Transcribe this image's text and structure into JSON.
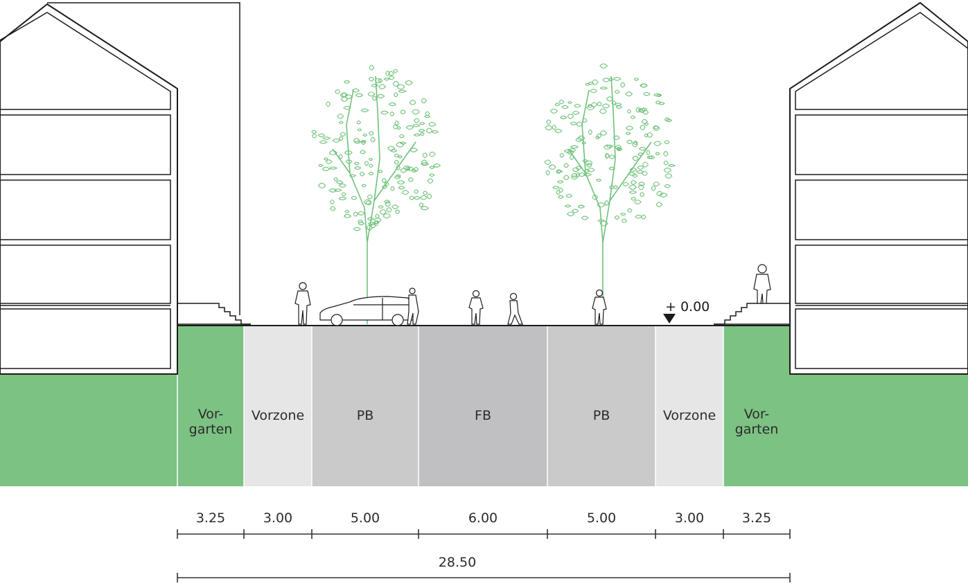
{
  "zones": [
    {
      "id": "vorgarten-left",
      "label_line1": "Vor-",
      "label_line2": "garten",
      "width_label": "3.25",
      "color": "#7cc283"
    },
    {
      "id": "vorzone-left",
      "label_line1": "Vorzone",
      "label_line2": "",
      "width_label": "3.00",
      "color": "#e6e6e6"
    },
    {
      "id": "pb-left",
      "label_line1": "PB",
      "label_line2": "",
      "width_label": "5.00",
      "color": "#cacaca"
    },
    {
      "id": "fb",
      "label_line1": "FB",
      "label_line2": "",
      "width_label": "6.00",
      "color": "#c0c0c2"
    },
    {
      "id": "pb-right",
      "label_line1": "PB",
      "label_line2": "",
      "width_label": "5.00",
      "color": "#cacaca"
    },
    {
      "id": "vorzone-right",
      "label_line1": "Vorzone",
      "label_line2": "",
      "width_label": "3.00",
      "color": "#e6e6e6"
    },
    {
      "id": "vorgarten-right",
      "label_line1": "Vor-",
      "label_line2": "garten",
      "width_label": "3.25",
      "color": "#7cc283"
    }
  ],
  "total_width_label": "28.50",
  "level_marker": "+ 0.00",
  "colors": {
    "green": "#7cc283",
    "tree_green": "#6fc27a",
    "line": "#1a1a1a"
  }
}
